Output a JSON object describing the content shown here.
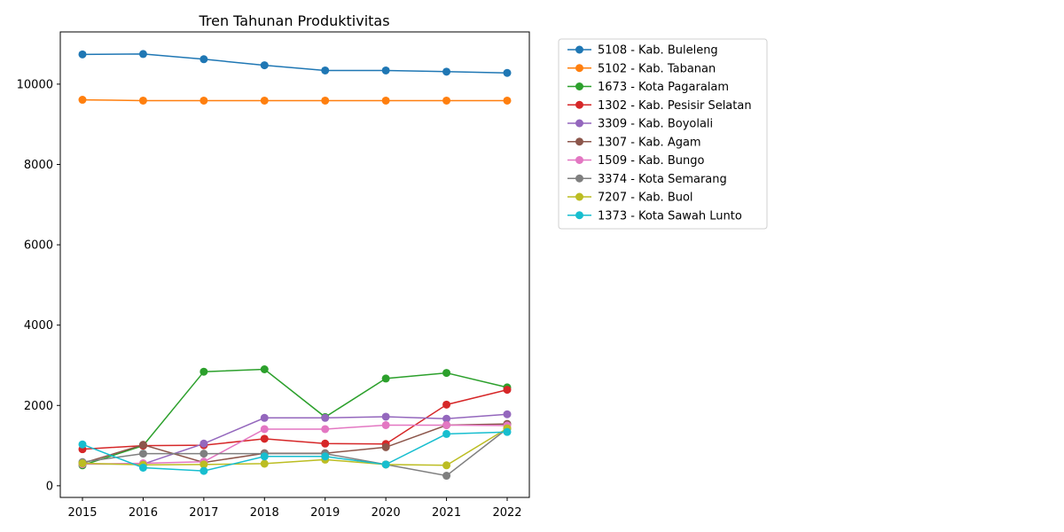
{
  "chart_data": {
    "type": "line",
    "title": "Tren Tahunan Produktivitas",
    "xlabel": "",
    "ylabel": "",
    "x": [
      "2015",
      "2016",
      "2017",
      "2018",
      "2019",
      "2020",
      "2021",
      "2022"
    ],
    "ylim": [
      -290,
      11300
    ],
    "yticks": [
      0,
      2000,
      4000,
      6000,
      8000,
      10000
    ],
    "grid": false,
    "legend_position": "outside-right-top",
    "series": [
      {
        "name": "5108 - Kab. Buleleng",
        "color": "#1f77b4",
        "values": [
          10740,
          10750,
          10620,
          10470,
          10340,
          10340,
          10310,
          10280
        ]
      },
      {
        "name": "5102 - Kab. Tabanan",
        "color": "#ff7f0e",
        "values": [
          9610,
          9590,
          9590,
          9590,
          9590,
          9590,
          9590,
          9590
        ]
      },
      {
        "name": "1673 - Kota Pagaralam",
        "color": "#2ca02c",
        "values": [
          510,
          1000,
          2840,
          2900,
          1710,
          2670,
          2810,
          2450
        ]
      },
      {
        "name": "1302 - Kab. Pesisir Selatan",
        "color": "#d62728",
        "values": [
          910,
          1000,
          1010,
          1170,
          1050,
          1040,
          2020,
          2390
        ]
      },
      {
        "name": "3309 - Kab. Boyolali",
        "color": "#9467bd",
        "values": [
          540,
          540,
          1050,
          1690,
          1690,
          1720,
          1670,
          1780
        ]
      },
      {
        "name": "1307 - Kab. Agam",
        "color": "#8c564b",
        "values": [
          560,
          1020,
          580,
          810,
          810,
          960,
          1510,
          1540
        ]
      },
      {
        "name": "1509 - Kab. Bungo",
        "color": "#e377c2",
        "values": [
          540,
          560,
          600,
          1410,
          1410,
          1510,
          1510,
          1500
        ]
      },
      {
        "name": "3374 - Kota Semarang",
        "color": "#7f7f7f",
        "values": [
          590,
          800,
          800,
          800,
          800,
          530,
          250,
          1420
        ]
      },
      {
        "name": "7207 - Kab. Buol",
        "color": "#bcbd22",
        "values": [
          560,
          520,
          530,
          550,
          650,
          530,
          510,
          1430
        ]
      },
      {
        "name": "1373 - Kota Sawah Lunto",
        "color": "#17becf",
        "values": [
          1030,
          450,
          370,
          730,
          730,
          530,
          1290,
          1340
        ]
      }
    ]
  }
}
